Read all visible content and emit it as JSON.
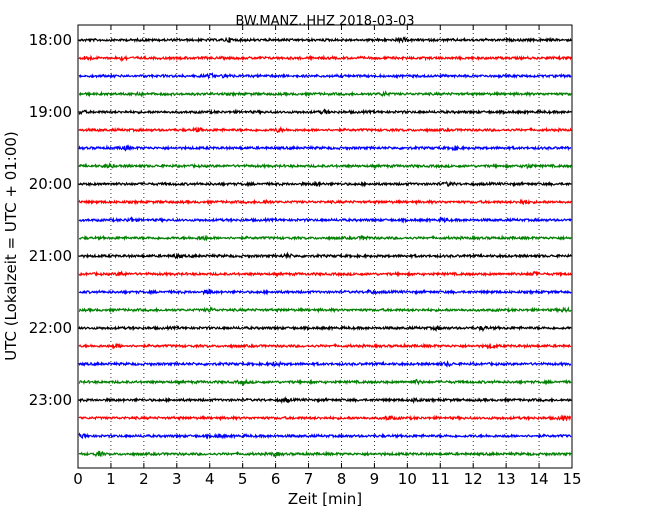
{
  "chart_data": {
    "type": "line",
    "title": "BW.MANZ..HHZ 2018-03-03",
    "xlabel": "Zeit  [min]",
    "ylabel": "UTC (Lokalzeit = UTC + 01:00)",
    "xlim": [
      0,
      15
    ],
    "x_ticks": [
      "0",
      "1",
      "2",
      "3",
      "4",
      "5",
      "6",
      "7",
      "8",
      "9",
      "10",
      "11",
      "12",
      "13",
      "14",
      "15"
    ],
    "y_ticks": [
      "18:00",
      "19:00",
      "20:00",
      "21:00",
      "22:00",
      "23:00"
    ],
    "grid": "vertical dotted",
    "trace_colors": [
      "#000000",
      "#ff0000",
      "#0000ff",
      "#008000"
    ],
    "traces": [
      "18:00",
      "18:15",
      "18:30",
      "18:45",
      "19:00",
      "19:15",
      "19:30",
      "19:45",
      "20:00",
      "20:15",
      "20:30",
      "20:45",
      "21:00",
      "21:15",
      "21:30",
      "21:45",
      "22:00",
      "22:15",
      "22:30",
      "22:45",
      "23:00",
      "23:15",
      "23:30",
      "23:45"
    ]
  }
}
